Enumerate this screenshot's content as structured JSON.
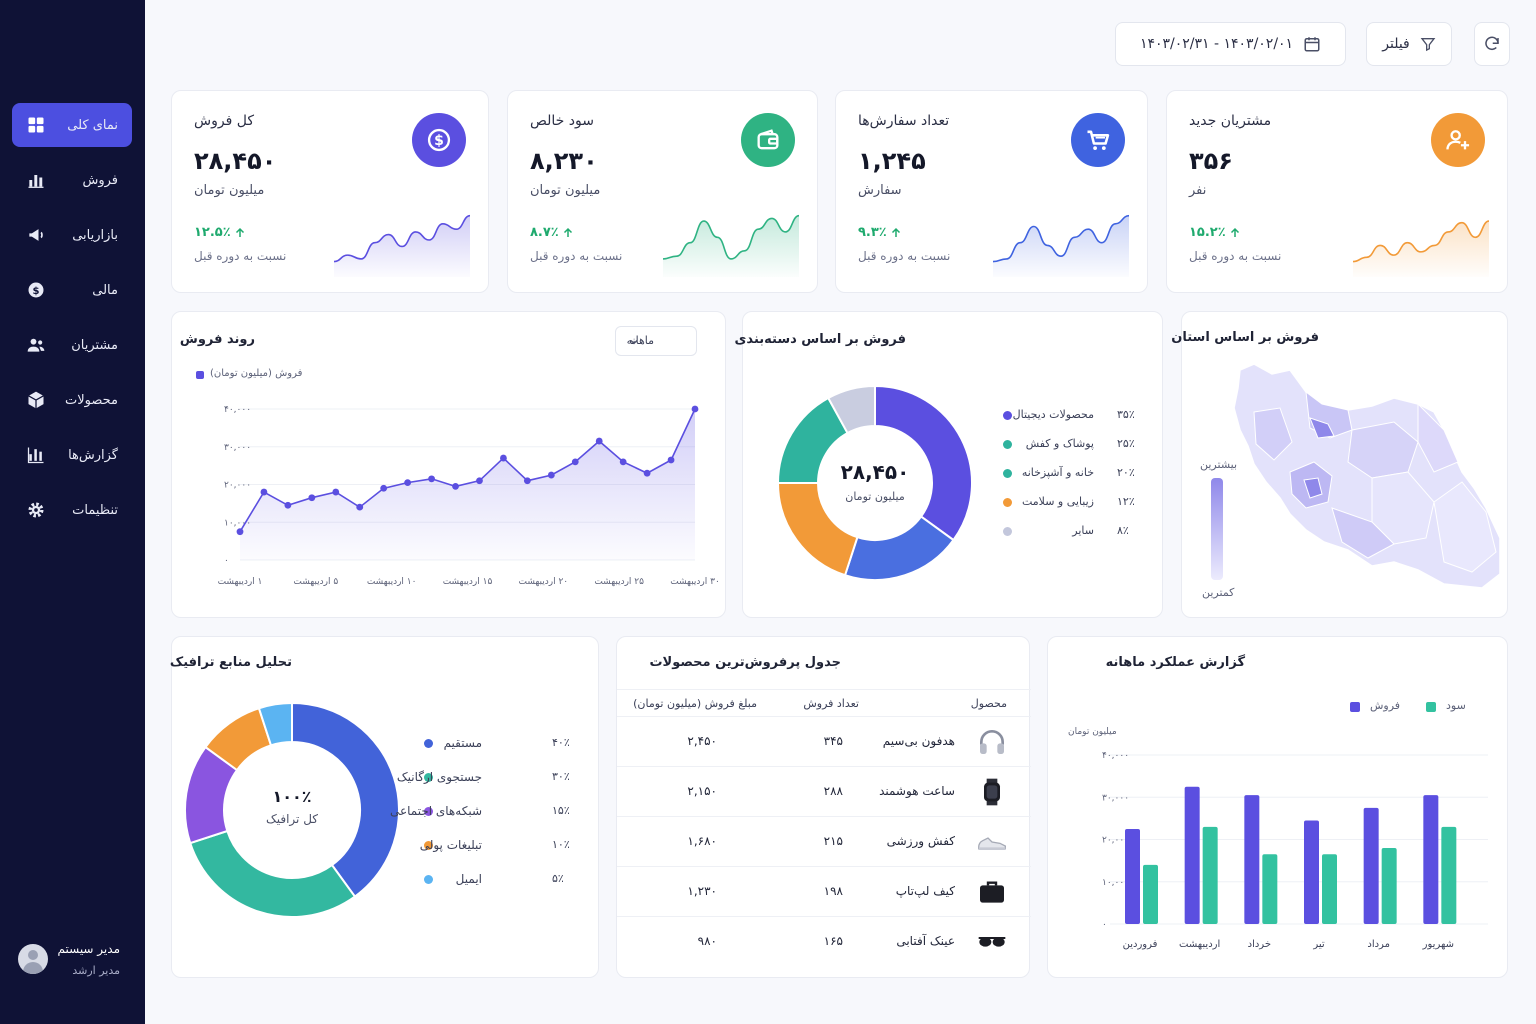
{
  "sidebar": {
    "items": [
      {
        "label": "نمای کلی",
        "icon": "grid-icon",
        "active": true
      },
      {
        "label": "فروش",
        "icon": "bar-chart-icon"
      },
      {
        "label": "بازاریابی",
        "icon": "megaphone-icon"
      },
      {
        "label": "مالی",
        "icon": "dollar-icon"
      },
      {
        "label": "مشتریان",
        "icon": "users-icon"
      },
      {
        "label": "محصولات",
        "icon": "box-icon"
      },
      {
        "label": "گزارش‌ها",
        "icon": "report-icon"
      },
      {
        "label": "تنظیمات",
        "icon": "gear-icon"
      }
    ],
    "user": {
      "name": "مدیر سیستم",
      "role": "مدیر ارشد"
    }
  },
  "toolbar": {
    "date_range": "۱۴۰۳/۰۲/۰۱ - ۱۴۰۳/۰۲/۳۱",
    "filter_label": "فیلتر"
  },
  "kpis": [
    {
      "title": "کل فروش",
      "value": "۲۸,۴۵۰",
      "unit": "میلیون تومان",
      "change": "۱۲.۵٪",
      "compare": "نسبت به دوره قبل",
      "color": "#5b4fe0",
      "icon": "dollar-icon"
    },
    {
      "title": "سود خالص",
      "value": "۸,۲۳۰",
      "unit": "میلیون تومان",
      "change": "۸.۷٪",
      "compare": "نسبت به دوره قبل",
      "color": "#2fb383",
      "icon": "wallet-icon"
    },
    {
      "title": "تعداد سفارش‌ها",
      "value": "۱,۲۴۵",
      "unit": "سفارش",
      "change": "۹.۳٪",
      "compare": "نسبت به دوره قبل",
      "color": "#3f63e0",
      "icon": "cart-icon"
    },
    {
      "title": "مشتریان جدید",
      "value": "۳۵۶",
      "unit": "نفر",
      "change": "۱۵.۲٪",
      "compare": "نسبت به دوره قبل",
      "color": "#f29a38",
      "icon": "add-user-icon"
    }
  ],
  "sales_trend": {
    "title": "روند فروش",
    "period": "ماهانه",
    "series_label": "فروش (میلیون تومان)",
    "y_ticks": [
      "۰",
      "۱۰,۰۰۰",
      "۲۰,۰۰۰",
      "۳۰,۰۰۰",
      "۴۰,۰۰۰"
    ],
    "x_ticks": [
      "۱ اردیبهشت",
      "۵ اردیبهشت",
      "۱۰ اردیبهشت",
      "۱۵ اردیبهشت",
      "۲۰ اردیبهشت",
      "۲۵ اردیبهشت",
      "۳۰ اردیبهشت"
    ]
  },
  "category_sales": {
    "title": "فروش بر اساس دسته‌بندی",
    "center_value": "۲۸,۴۵۰",
    "center_label": "میلیون تومان",
    "items": [
      {
        "name": "محصولات دیجیتال",
        "pct": "۳۵٪",
        "color": "#5b4fe0"
      },
      {
        "name": "پوشاک و کفش",
        "pct": "۲۵٪",
        "color": "#2fb39e"
      },
      {
        "name": "خانه و آشپزخانه",
        "pct": "۲۰٪",
        "color": "#2fb39e"
      },
      {
        "name": "زیبایی و سلامت",
        "pct": "۱۲٪",
        "color": "#f29a38"
      },
      {
        "name": "سایر",
        "pct": "۸٪",
        "color": "#c3c7dc"
      }
    ]
  },
  "province_sales": {
    "title": "فروش بر اساس استان",
    "legend_high": "بیشترین",
    "legend_low": "کمترین"
  },
  "traffic": {
    "title": "تحلیل منابع ترافیک",
    "center_value": "۱۰۰٪",
    "center_label": "کل ترافیک",
    "items": [
      {
        "name": "مستقیم",
        "pct": "۴۰٪",
        "color": "#4263d9"
      },
      {
        "name": "جستجوی ارگانیک",
        "pct": "۳۰٪",
        "color": "#33b8a0"
      },
      {
        "name": "شبکه‌های اجتماعی",
        "pct": "۱۵٪",
        "color": "#8a55e0"
      },
      {
        "name": "تبلیغات پولی",
        "pct": "۱۰٪",
        "color": "#f29a38"
      },
      {
        "name": "ایمیل",
        "pct": "۵٪",
        "color": "#5bb4f2"
      }
    ]
  },
  "top_products": {
    "title": "جدول پرفروش‌ترین محصولات",
    "headers": {
      "product": "محصول",
      "count": "تعداد فروش",
      "amount": "مبلغ فروش (میلیون تومان)"
    },
    "rows": [
      {
        "name": "هدفون بی‌سیم",
        "count": "۳۴۵",
        "amount": "۲,۴۵۰",
        "icon": "headphones-icon"
      },
      {
        "name": "ساعت هوشمند",
        "count": "۲۸۸",
        "amount": "۲,۱۵۰",
        "icon": "smartwatch-icon"
      },
      {
        "name": "کفش ورزشی",
        "count": "۲۱۵",
        "amount": "۱,۶۸۰",
        "icon": "sneaker-icon"
      },
      {
        "name": "کیف لپ‌تاپ",
        "count": "۱۹۸",
        "amount": "۱,۲۳۰",
        "icon": "bag-icon"
      },
      {
        "name": "عینک آفتابی",
        "count": "۱۶۵",
        "amount": "۹۸۰",
        "icon": "sunglasses-icon"
      }
    ]
  },
  "monthly_report": {
    "title": "گزارش عملکرد ماهانه",
    "legend": [
      {
        "name": "فروش",
        "color": "#5b4fe0"
      },
      {
        "name": "سود",
        "color": "#33c2a0"
      }
    ],
    "y_unit": "میلیون تومان",
    "y_ticks": [
      "۰",
      "۱۰,۰۰۰",
      "۲۰,۰۰۰",
      "۳۰,۰۰۰",
      "۴۰,۰۰۰"
    ]
  },
  "chart_data": [
    {
      "type": "line",
      "title": "روند فروش",
      "series": [
        {
          "name": "فروش (میلیون تومان)",
          "values": [
            7500,
            18000,
            14500,
            16500,
            18000,
            14000,
            19000,
            20500,
            21500,
            19500,
            21000,
            27000,
            21000,
            22500,
            26000,
            31500,
            26000,
            23000,
            26500,
            40000
          ]
        }
      ],
      "ylim": [
        0,
        40000
      ],
      "x_labels": [
        "۱ اردیبهشت",
        "۵ اردیبهشت",
        "۱۰ اردیبهشت",
        "۱۵ اردیبهشت",
        "۲۰ اردیبهشت",
        "۲۵ اردیبهشت",
        "۳۰ اردیبهشت"
      ]
    },
    {
      "type": "pie",
      "title": "فروش بر اساس دسته‌بندی",
      "labels": [
        "محصولات دیجیتال",
        "پوشاک و کفش",
        "خانه و آشپزخانه",
        "زیبایی و سلامت",
        "سایر"
      ],
      "values": [
        35,
        25,
        20,
        12,
        8
      ]
    },
    {
      "type": "pie",
      "title": "تحلیل منابع ترافیک",
      "labels": [
        "مستقیم",
        "جستجوی ارگانیک",
        "شبکه‌های اجتماعی",
        "تبلیغات پولی",
        "ایمیل"
      ],
      "values": [
        40,
        30,
        15,
        10,
        5
      ]
    },
    {
      "type": "bar",
      "title": "گزارش عملکرد ماهانه",
      "categories": [
        "فروردین",
        "اردیبهشت",
        "خرداد",
        "تیر",
        "مرداد",
        "شهریور"
      ],
      "series": [
        {
          "name": "فروش",
          "values": [
            22500,
            32500,
            30500,
            24500,
            27500,
            30500
          ]
        },
        {
          "name": "سود",
          "values": [
            14000,
            23000,
            16500,
            16500,
            18000,
            23000
          ]
        }
      ],
      "ylim": [
        0,
        40000
      ]
    }
  ]
}
